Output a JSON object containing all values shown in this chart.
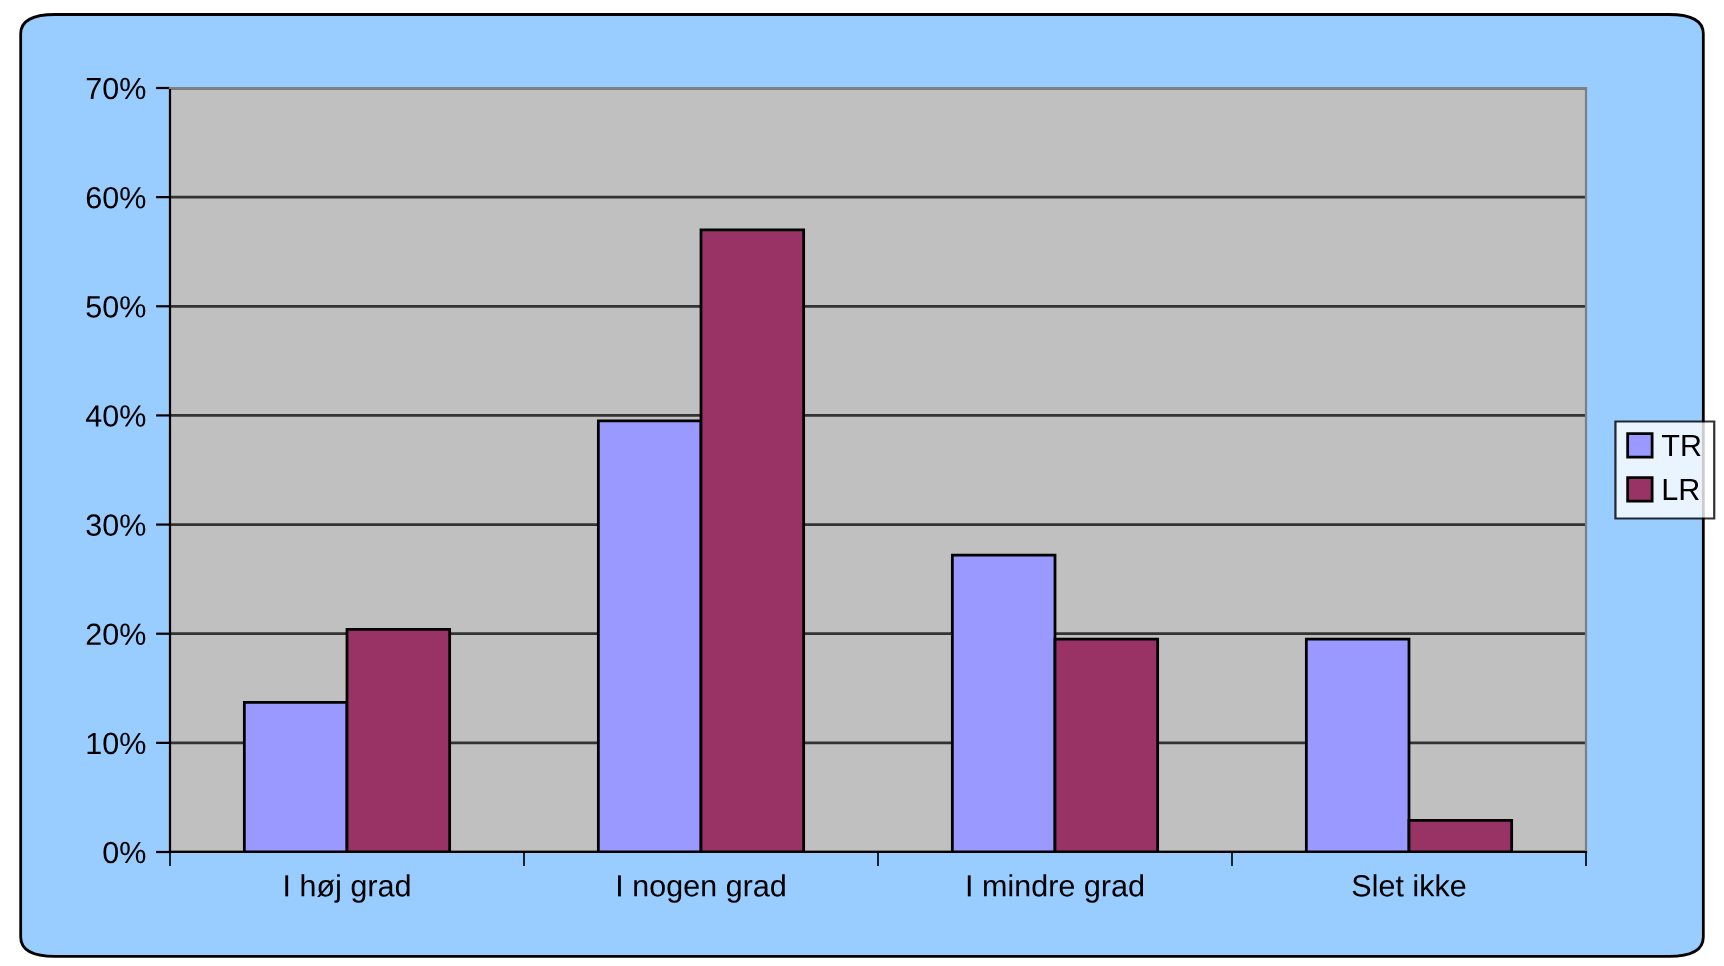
{
  "chart_data": {
    "type": "bar",
    "categories": [
      "I høj grad",
      "I nogen grad",
      "I mindre grad",
      "Slet ikke"
    ],
    "series": [
      {
        "name": "TR",
        "color": "#9999ff",
        "values": [
          13.7,
          39.5,
          27.2,
          19.5
        ]
      },
      {
        "name": "LR",
        "color": "#993366",
        "values": [
          20.4,
          57.0,
          19.5,
          2.9
        ]
      }
    ],
    "ylim": [
      0,
      70
    ],
    "yticks": [
      {
        "value": 0,
        "label": "0%"
      },
      {
        "value": 10,
        "label": "10%"
      },
      {
        "value": 20,
        "label": "20%"
      },
      {
        "value": 30,
        "label": "30%"
      },
      {
        "value": 40,
        "label": "40%"
      },
      {
        "value": 50,
        "label": "50%"
      },
      {
        "value": 60,
        "label": "60%"
      },
      {
        "value": 70,
        "label": "70%"
      }
    ],
    "grid": "y",
    "legend": "right"
  }
}
